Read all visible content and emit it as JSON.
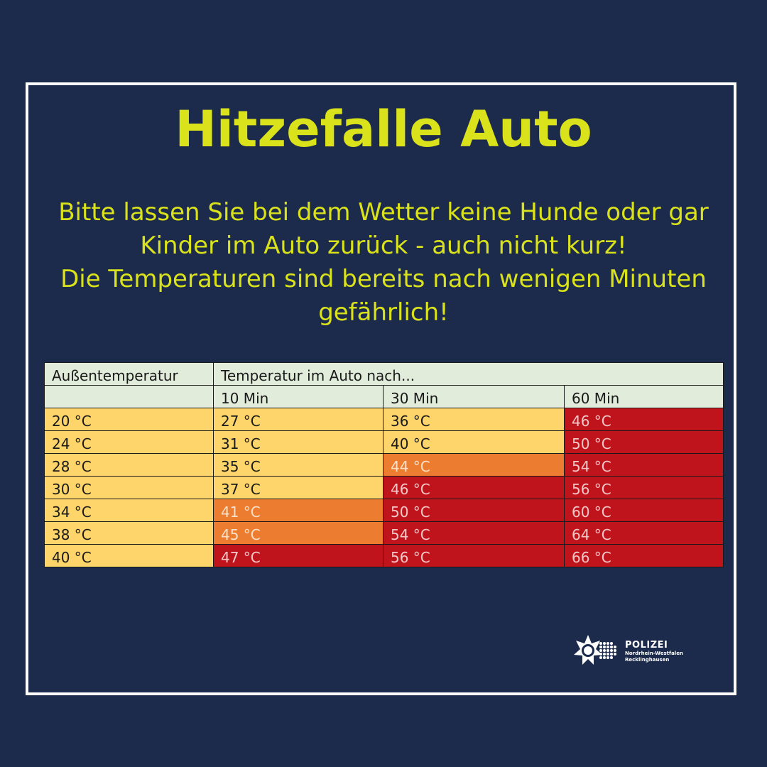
{
  "title": "Hitzefalle Auto",
  "message": {
    "line1": "Bitte lassen Sie bei dem Wetter keine Hunde oder gar",
    "line2": "Kinder im Auto zurück - auch nicht kurz!",
    "line3": "Die Temperaturen sind bereits nach wenigen Minuten",
    "line4": "gefährlich!"
  },
  "table": {
    "col_outside": "Außentemperatur",
    "col_inside": "Temperatur im Auto nach...",
    "times": [
      "10 Min",
      "30 Min",
      "60 Min"
    ],
    "rows": [
      {
        "outside": "20 °C",
        "cells": [
          {
            "v": "27 °C",
            "level": "yellow"
          },
          {
            "v": "36 °C",
            "level": "yellow"
          },
          {
            "v": "46 °C",
            "level": "red"
          }
        ]
      },
      {
        "outside": "24 °C",
        "cells": [
          {
            "v": "31 °C",
            "level": "yellow"
          },
          {
            "v": "40 °C",
            "level": "yellow"
          },
          {
            "v": "50 °C",
            "level": "red"
          }
        ]
      },
      {
        "outside": "28 °C",
        "cells": [
          {
            "v": "35 °C",
            "level": "yellow"
          },
          {
            "v": "44 °C",
            "level": "orange"
          },
          {
            "v": "54 °C",
            "level": "red"
          }
        ]
      },
      {
        "outside": "30 °C",
        "cells": [
          {
            "v": "37 °C",
            "level": "yellow"
          },
          {
            "v": "46 °C",
            "level": "red"
          },
          {
            "v": "56 °C",
            "level": "red"
          }
        ]
      },
      {
        "outside": "34 °C",
        "cells": [
          {
            "v": "41 °C",
            "level": "orange"
          },
          {
            "v": "50 °C",
            "level": "red"
          },
          {
            "v": "60 °C",
            "level": "red"
          }
        ]
      },
      {
        "outside": "38 °C",
        "cells": [
          {
            "v": "45 °C",
            "level": "orange"
          },
          {
            "v": "54 °C",
            "level": "red"
          },
          {
            "v": "64 °C",
            "level": "red"
          }
        ]
      },
      {
        "outside": "40 °C",
        "cells": [
          {
            "v": "47 °C",
            "level": "red"
          },
          {
            "v": "56 °C",
            "level": "red"
          },
          {
            "v": "66 °C",
            "level": "red"
          }
        ]
      }
    ]
  },
  "logo": {
    "name": "POLIZEI",
    "line1": "Nordrhein-Westfalen",
    "line2": "Recklinghausen",
    "icon": "police-star-icon"
  },
  "colors": {
    "background": "#1c2a4b",
    "headline": "#d9e21a",
    "header_cell": "#e1ecdb",
    "yellow": "#fdd56a",
    "orange": "#ec7c30",
    "red": "#c0141c"
  }
}
